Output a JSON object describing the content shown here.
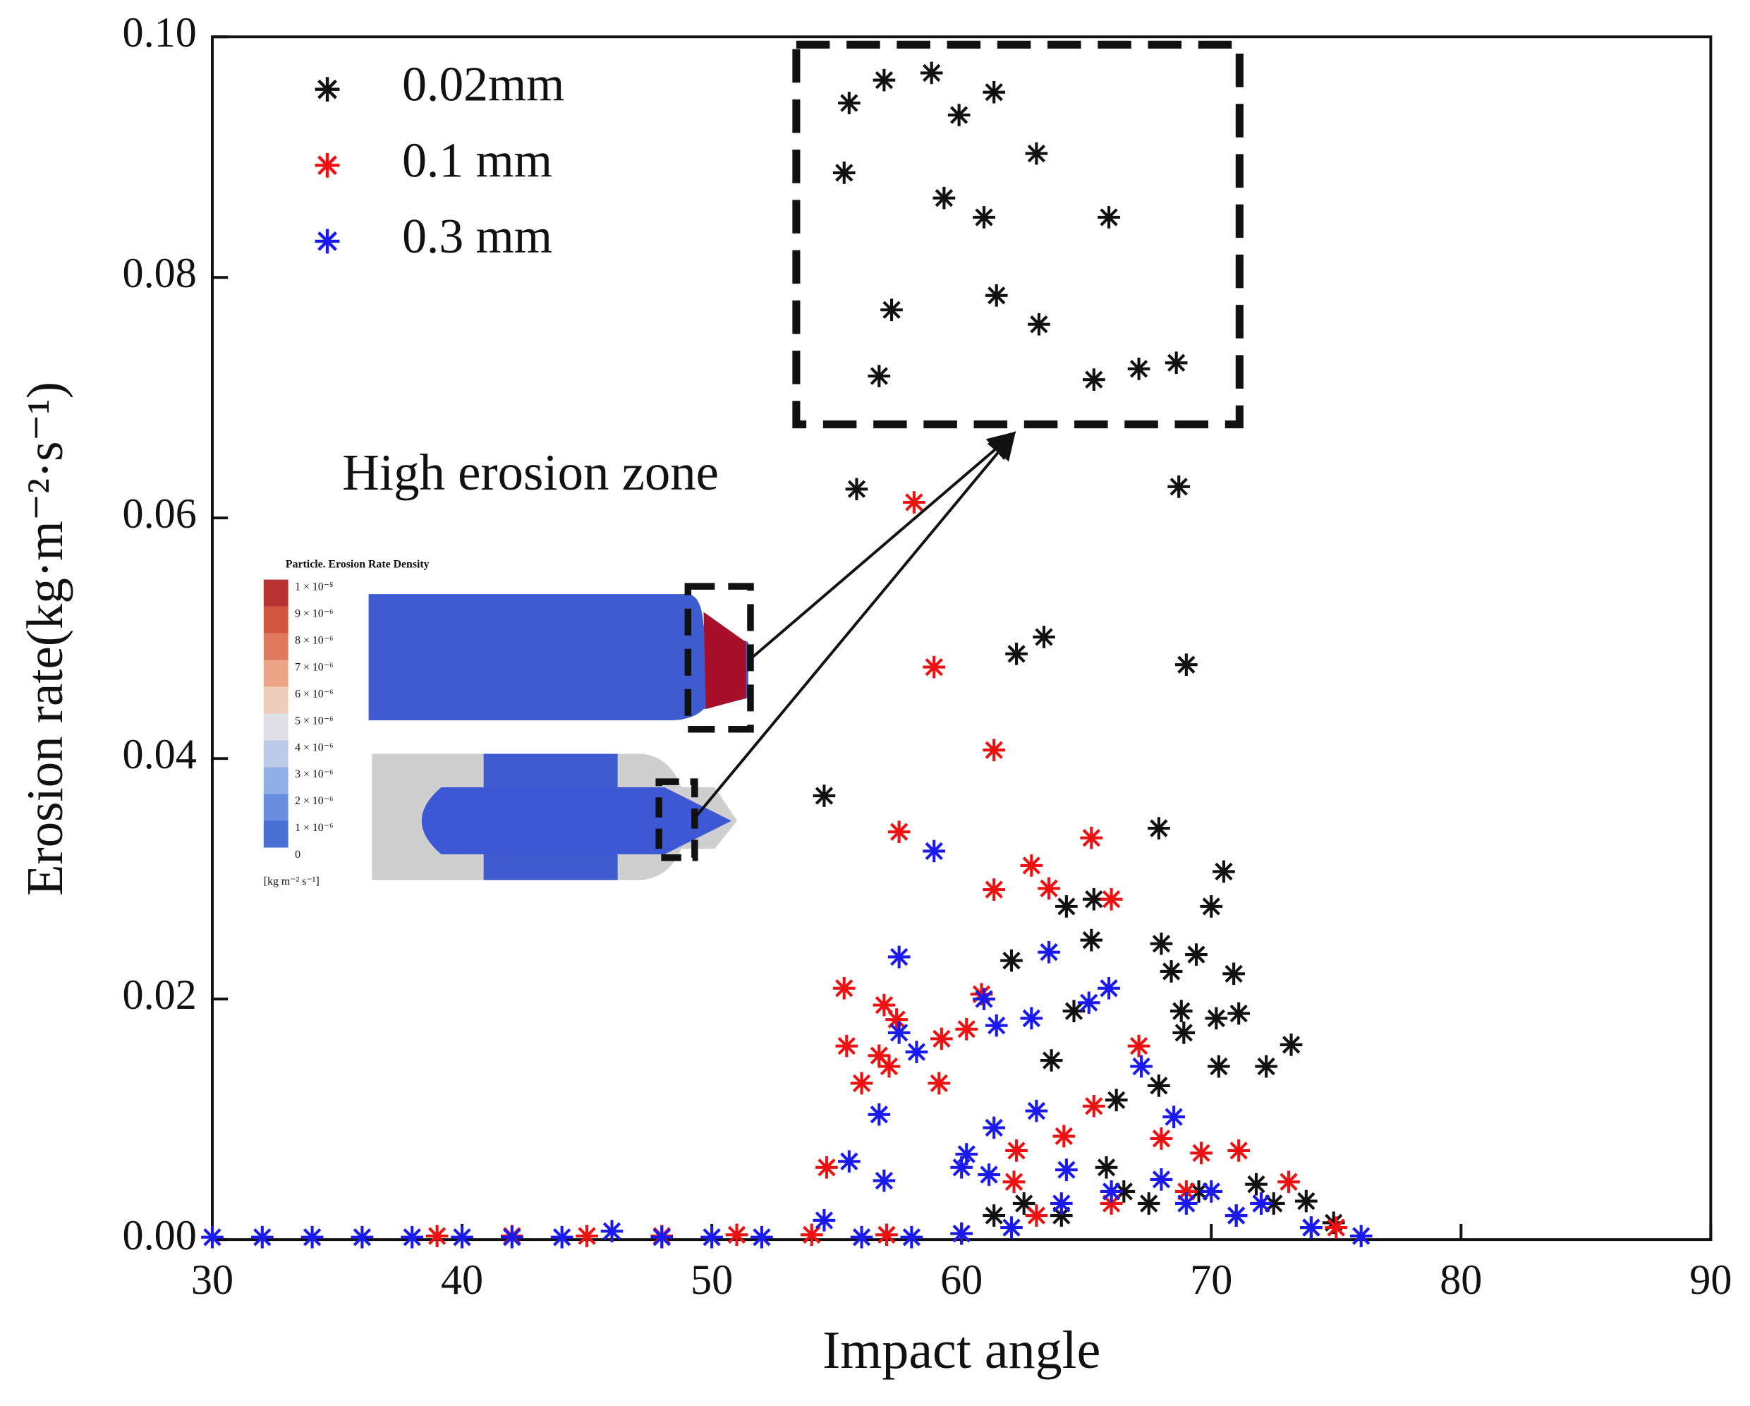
{
  "chart_data": {
    "type": "scatter",
    "xlabel": "Impact angle",
    "ylabel": "Erosion rate(kg·m⁻²·s⁻¹)",
    "annotation": "High erosion zone",
    "inset_title": "Particle. Erosion Rate Density",
    "inset_labels": [
      "1 × 10⁻⁵",
      "9 × 10⁻⁶",
      "8 × 10⁻⁶",
      "7 × 10⁻⁶",
      "6 × 10⁻⁶",
      "5 × 10⁻⁶",
      "4 × 10⁻⁶",
      "3 × 10⁻⁶",
      "2 × 10⁻⁶",
      "1 × 10⁻⁶",
      "0"
    ],
    "inset_unit": "[kg m⁻² s⁻¹]",
    "xlim": [
      30,
      90
    ],
    "xticks": [
      30,
      40,
      50,
      60,
      70,
      80,
      90
    ],
    "ylim": [
      0,
      0.1
    ],
    "yticks": [
      {
        "value": 0,
        "label": "0.00"
      },
      {
        "value": 0.02,
        "label": "0.02"
      },
      {
        "value": 0.04,
        "label": "0.04"
      },
      {
        "value": 0.06,
        "label": "0.06"
      },
      {
        "value": 0.08,
        "label": "0.08"
      },
      {
        "value": 0.1,
        "label": "0.10"
      }
    ],
    "legend": "upper left",
    "series": [
      {
        "name": "0.02mm",
        "color": "#111111",
        "x": [
          55.5,
          56.9,
          58.8,
          59.9,
          61.3,
          55.3,
          63.0,
          59.3,
          60.9,
          65.9,
          57.2,
          61.4,
          63.1,
          56.7,
          65.3,
          67.1,
          68.6,
          55.8,
          68.7,
          62.2,
          63.3,
          69.0,
          54.5,
          67.9,
          70.5,
          70.0,
          64.2,
          65.3,
          65.2,
          68.0,
          69.4,
          62.0,
          68.4,
          70.9,
          64.5,
          68.8,
          70.2,
          71.1,
          68.9,
          73.2,
          70.3,
          72.2,
          63.6,
          66.2,
          67.9,
          65.8,
          71.8,
          73.8,
          74.9,
          61.3,
          62.5,
          64.0,
          66.5,
          67.5,
          69.5,
          71.0,
          72.5,
          74.0
        ],
        "values": [
          0.0945,
          0.0964,
          0.097,
          0.0935,
          0.0954,
          0.0887,
          0.0903,
          0.0866,
          0.085,
          0.085,
          0.0773,
          0.0785,
          0.0761,
          0.0718,
          0.0715,
          0.0724,
          0.0729,
          0.0624,
          0.0626,
          0.0487,
          0.0501,
          0.0478,
          0.0369,
          0.0342,
          0.0306,
          0.0277,
          0.0277,
          0.0283,
          0.0249,
          0.0246,
          0.0237,
          0.0232,
          0.0223,
          0.0221,
          0.019,
          0.019,
          0.0184,
          0.0188,
          0.0172,
          0.0162,
          0.0144,
          0.0144,
          0.0149,
          0.0116,
          0.0128,
          0.006,
          0.0046,
          0.0032,
          0.0014,
          0.002,
          0.003,
          0.002,
          0.004,
          0.003,
          0.004,
          0.002,
          0.003,
          0.001
        ]
      },
      {
        "name": "0.1 mm",
        "color": "#ee1111",
        "x": [
          58.1,
          58.9,
          61.3,
          57.5,
          65.2,
          62.8,
          63.5,
          61.3,
          66.0,
          55.3,
          60.8,
          56.9,
          57.4,
          60.2,
          59.2,
          55.4,
          56.7,
          57.1,
          67.1,
          56.0,
          59.1,
          65.3,
          64.1,
          62.2,
          54.6,
          68.0,
          69.6,
          71.1,
          73.1,
          62.1,
          39,
          42,
          45,
          48,
          51,
          54,
          57,
          60,
          63,
          66,
          69,
          72,
          75
        ],
        "values": [
          0.0613,
          0.0476,
          0.0407,
          0.0339,
          0.0334,
          0.0311,
          0.0292,
          0.0291,
          0.0283,
          0.0209,
          0.0204,
          0.0195,
          0.0183,
          0.0175,
          0.0167,
          0.0161,
          0.0153,
          0.0144,
          0.0161,
          0.013,
          0.013,
          0.0111,
          0.0086,
          0.0074,
          0.006,
          0.0084,
          0.0072,
          0.0074,
          0.0048,
          0.0048,
          0.0003,
          0.0003,
          0.0003,
          0.0003,
          0.0004,
          0.0004,
          0.0004,
          0.0005,
          0.002,
          0.003,
          0.004,
          0.003,
          0.001
        ]
      },
      {
        "name": "0.3 mm",
        "color": "#1a1aee",
        "x": [
          58.9,
          57.5,
          63.5,
          65.9,
          65.1,
          60.9,
          57.5,
          58.2,
          61.4,
          62.8,
          56.7,
          63.0,
          61.3,
          68.5,
          67.2,
          60.2,
          60.0,
          55.5,
          56.9,
          61.1,
          64.2,
          46.0,
          54.5,
          30,
          32,
          34,
          36,
          38,
          40,
          42,
          44,
          48,
          50,
          52,
          56,
          58,
          60,
          62,
          64,
          66,
          68,
          69,
          70,
          71,
          72,
          74,
          76
        ],
        "values": [
          0.0323,
          0.0235,
          0.0239,
          0.0209,
          0.0197,
          0.02,
          0.0172,
          0.0156,
          0.0178,
          0.0184,
          0.0104,
          0.0107,
          0.0093,
          0.0102,
          0.0144,
          0.0071,
          0.006,
          0.0065,
          0.0049,
          0.0054,
          0.0058,
          0.0007,
          0.0016,
          0.0002,
          0.0002,
          0.0002,
          0.0002,
          0.0002,
          0.0002,
          0.0002,
          0.0002,
          0.0002,
          0.0002,
          0.0002,
          0.0002,
          0.0002,
          0.0005,
          0.001,
          0.003,
          0.004,
          0.005,
          0.003,
          0.004,
          0.002,
          0.003,
          0.001,
          0.0003
        ]
      }
    ]
  }
}
